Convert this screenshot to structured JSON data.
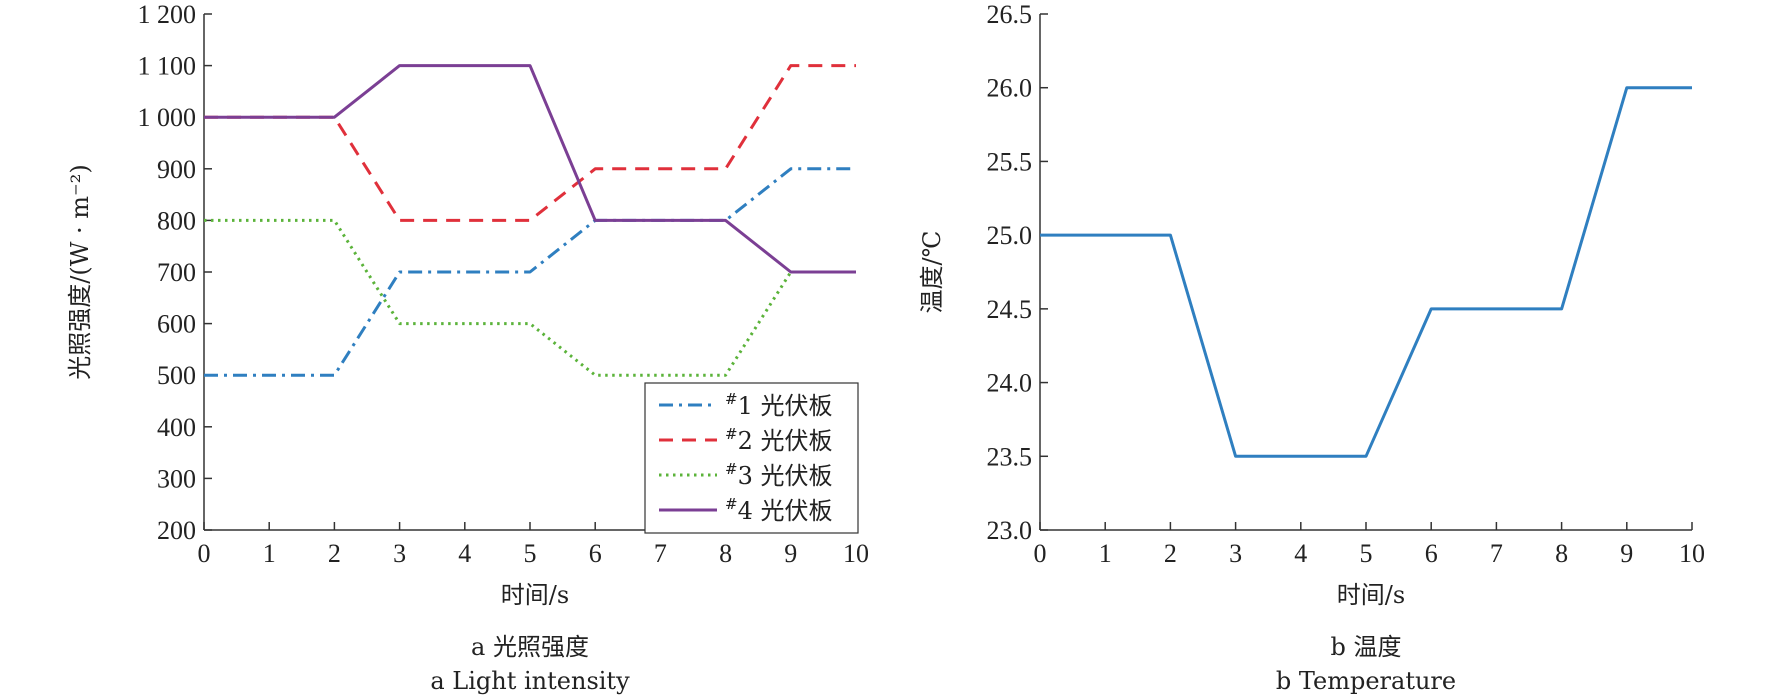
{
  "chart_data": [
    {
      "type": "line",
      "xlabel": "时间/s",
      "ylabel": "光照强度/(W · m⁻²)",
      "caption_cn": "a  光照强度",
      "caption_en": "a  Light intensity",
      "xlim": [
        0,
        10
      ],
      "ylim": [
        200,
        1200
      ],
      "xticks": [
        0,
        1,
        2,
        3,
        4,
        5,
        6,
        7,
        8,
        9,
        10
      ],
      "xtick_labels": [
        "0",
        "1",
        "2",
        "3",
        "4",
        "5",
        "6",
        "7",
        "8",
        "9",
        "10"
      ],
      "yticks": [
        200,
        300,
        400,
        500,
        600,
        700,
        800,
        900,
        1000,
        1100,
        1200
      ],
      "ytick_labels": [
        "200",
        "300",
        "400",
        "500",
        "600",
        "700",
        "800",
        "900",
        "1 000",
        "1 100",
        "1 200"
      ],
      "grid": false,
      "legend_position": "bottom-right",
      "series": [
        {
          "name": "#1 光伏板",
          "label_sup": "#",
          "label_main": "1 光伏板",
          "color": "#2f7fc0",
          "style": "dashdot",
          "x": [
            0,
            2,
            3,
            5,
            6,
            8,
            9,
            10
          ],
          "y": [
            500,
            500,
            700,
            700,
            800,
            800,
            900,
            900
          ]
        },
        {
          "name": "#2 光伏板",
          "label_sup": "#",
          "label_main": "2 光伏板",
          "color": "#e0303b",
          "style": "dashed",
          "x": [
            0,
            2,
            3,
            5,
            6,
            8,
            9,
            10
          ],
          "y": [
            1000,
            1000,
            800,
            800,
            900,
            900,
            1100,
            1100
          ]
        },
        {
          "name": "#3 光伏板",
          "label_sup": "#",
          "label_main": "3 光伏板",
          "color": "#5bb33a",
          "style": "dotted",
          "x": [
            0,
            2,
            3,
            5,
            6,
            8,
            9,
            10
          ],
          "y": [
            800,
            800,
            600,
            600,
            500,
            500,
            700,
            700
          ]
        },
        {
          "name": "#4 光伏板",
          "label_sup": "#",
          "label_main": "4 光伏板",
          "color": "#7b3f94",
          "style": "solid",
          "x": [
            0,
            2,
            3,
            5,
            6,
            8,
            9,
            10
          ],
          "y": [
            1000,
            1000,
            1100,
            1100,
            800,
            800,
            700,
            700
          ]
        }
      ]
    },
    {
      "type": "line",
      "xlabel": "时间/s",
      "ylabel": "温度/℃",
      "caption_cn": "b  温度",
      "caption_en": "b  Temperature",
      "xlim": [
        0,
        10
      ],
      "ylim": [
        23.0,
        26.5
      ],
      "xticks": [
        0,
        1,
        2,
        3,
        4,
        5,
        6,
        7,
        8,
        9,
        10
      ],
      "xtick_labels": [
        "0",
        "1",
        "2",
        "3",
        "4",
        "5",
        "6",
        "7",
        "8",
        "9",
        "10"
      ],
      "yticks": [
        23.0,
        23.5,
        24.0,
        24.5,
        25.0,
        25.5,
        26.0,
        26.5
      ],
      "ytick_labels": [
        "23.0",
        "23.5",
        "24.0",
        "24.5",
        "25.0",
        "25.5",
        "26.0",
        "26.5"
      ],
      "grid": false,
      "series": [
        {
          "color": "#2f7fc0",
          "style": "solid",
          "x": [
            0,
            2,
            3,
            5,
            6,
            8,
            9,
            10
          ],
          "y": [
            25.0,
            25.0,
            23.5,
            23.5,
            24.5,
            24.5,
            26.0,
            26.0
          ]
        }
      ]
    }
  ]
}
